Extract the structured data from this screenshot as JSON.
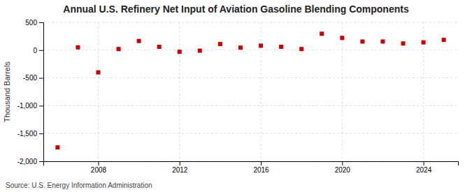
{
  "chart_data": {
    "type": "scatter",
    "title": "Annual U.S. Refinery Net Input of Aviation Gasoline Blending Components",
    "ylabel": "Thousand Barrels",
    "source": "Source: U.S. Energy Information Administration",
    "x": [
      2006,
      2007,
      2008,
      2009,
      2010,
      2011,
      2012,
      2013,
      2014,
      2015,
      2016,
      2017,
      2018,
      2019,
      2020,
      2021,
      2022,
      2023,
      2024,
      2025
    ],
    "values": [
      -1750,
      50,
      -400,
      20,
      165,
      60,
      -30,
      -10,
      110,
      45,
      80,
      60,
      20,
      295,
      220,
      155,
      155,
      120,
      140,
      185
    ],
    "color": "#cc0000",
    "marker": "square",
    "xlim": [
      2005.3,
      2025.7
    ],
    "xticks": [
      2008,
      2012,
      2016,
      2020,
      2024
    ],
    "ylim": [
      -2000,
      500
    ],
    "yticks": [
      {
        "value": -2000,
        "label": "-2,000"
      },
      {
        "value": -1500,
        "label": "-1,500"
      },
      {
        "value": -1000,
        "label": "-1,000"
      },
      -500,
      0,
      500
    ],
    "grid": true
  }
}
